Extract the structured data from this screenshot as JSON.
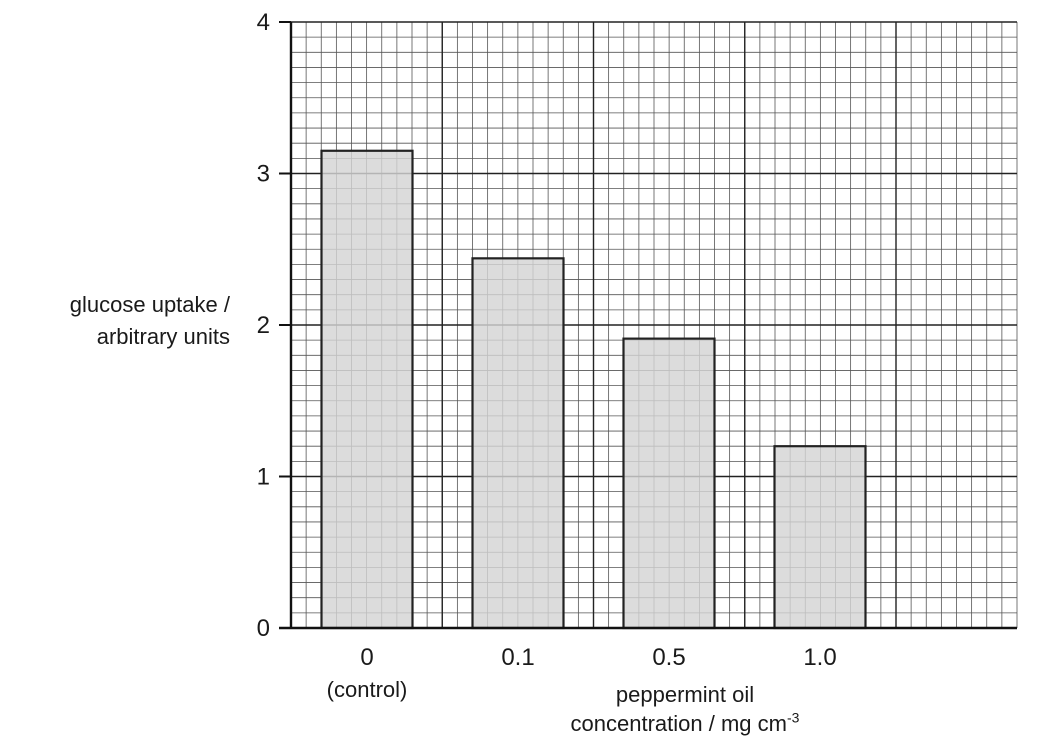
{
  "chart_data": {
    "type": "bar",
    "categories": [
      "0",
      "0.1",
      "0.5",
      "1.0"
    ],
    "category_sublabels": [
      "(control)",
      "",
      "",
      ""
    ],
    "values": [
      3.15,
      2.44,
      1.91,
      1.2
    ],
    "ylabel_lines": [
      "glucose uptake /",
      "arbitrary units"
    ],
    "xlabel_lines": [
      "peppermint oil",
      "concentration / mg cm"
    ],
    "xlabel_unit_superscript": "-3",
    "ylim": [
      0,
      4
    ],
    "yticks": [
      "0",
      "1",
      "2",
      "3",
      "4"
    ],
    "grid": true,
    "bar_fill": "#d4d4d4",
    "bar_stroke": "#222222",
    "grid_major_color": "#222222",
    "grid_minor_color": "#555555"
  }
}
